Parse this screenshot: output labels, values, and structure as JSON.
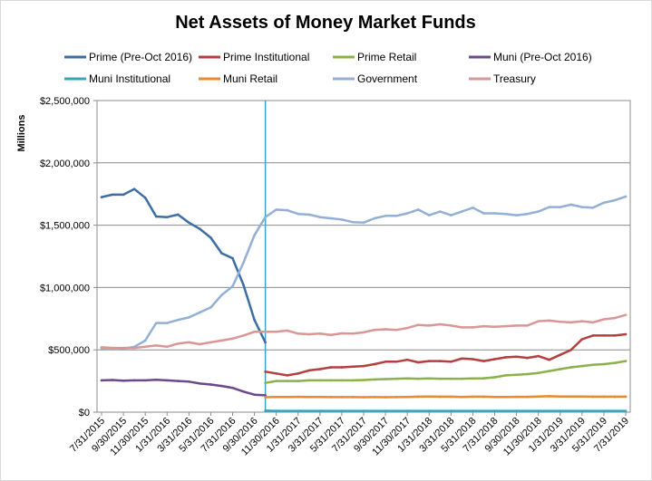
{
  "chart_data": {
    "type": "line",
    "title": "Net Assets of Money Market Funds",
    "xlabel": "",
    "ylabel": "Millions",
    "ylim": [
      0,
      2500000
    ],
    "yticks": [
      "$0",
      "$500,000",
      "$1,000,000",
      "$1,500,000",
      "$2,000,000",
      "$2,500,000"
    ],
    "grid": "horizontal",
    "legend_position": "top",
    "x": [
      "7/31/2015",
      "8/31/2015",
      "9/30/2015",
      "10/31/2015",
      "11/30/2015",
      "12/31/2015",
      "1/31/2016",
      "2/29/2016",
      "3/31/2016",
      "4/30/2016",
      "5/31/2016",
      "6/30/2016",
      "7/31/2016",
      "8/31/2016",
      "9/30/2016",
      "10/31/2016",
      "11/30/2016",
      "12/31/2016",
      "1/31/2017",
      "2/28/2017",
      "3/31/2017",
      "4/30/2017",
      "5/31/2017",
      "6/30/2017",
      "7/31/2017",
      "8/31/2017",
      "9/30/2017",
      "10/31/2017",
      "11/30/2017",
      "12/31/2017",
      "1/31/2018",
      "2/28/2018",
      "3/31/2018",
      "4/30/2018",
      "5/31/2018",
      "6/30/2018",
      "7/31/2018",
      "8/31/2018",
      "9/30/2018",
      "10/31/2018",
      "11/30/2018",
      "12/31/2018",
      "1/31/2019",
      "2/28/2019",
      "3/31/2019",
      "4/30/2019",
      "5/31/2019",
      "6/30/2019",
      "7/31/2019"
    ],
    "xtick_labels": [
      "7/31/2015",
      "9/30/2015",
      "11/30/2015",
      "1/31/2016",
      "3/31/2016",
      "5/31/2016",
      "7/31/2016",
      "9/30/2016",
      "11/30/2016",
      "1/31/2017",
      "3/31/2017",
      "5/31/2017",
      "7/31/2017",
      "9/30/2017",
      "11/30/2017",
      "1/31/2018",
      "3/31/2018",
      "5/31/2018",
      "7/31/2018",
      "9/30/2018",
      "11/30/2018",
      "1/31/2019",
      "3/31/2019",
      "5/31/2019",
      "7/31/2019"
    ],
    "divider_x": "10/31/2016",
    "series": [
      {
        "name": "Prime (Pre-Oct 2016)",
        "color": "#3c6ea5",
        "values": [
          1725000,
          1745000,
          1745000,
          1790000,
          1720000,
          1570000,
          1565000,
          1585000,
          1520000,
          1470000,
          1400000,
          1275000,
          1235000,
          1020000,
          740000,
          560000,
          null,
          null,
          null,
          null,
          null,
          null,
          null,
          null,
          null,
          null,
          null,
          null,
          null,
          null,
          null,
          null,
          null,
          null,
          null,
          null,
          null,
          null,
          null,
          null,
          null,
          null,
          null,
          null,
          null,
          null,
          null,
          null,
          null
        ]
      },
      {
        "name": "Prime Institutional",
        "color": "#b3403e",
        "values": [
          null,
          null,
          null,
          null,
          null,
          null,
          null,
          null,
          null,
          null,
          null,
          null,
          null,
          null,
          null,
          325000,
          310000,
          295000,
          310000,
          335000,
          345000,
          360000,
          360000,
          365000,
          370000,
          385000,
          405000,
          405000,
          420000,
          400000,
          410000,
          410000,
          405000,
          430000,
          425000,
          410000,
          425000,
          440000,
          445000,
          435000,
          450000,
          420000,
          460000,
          500000,
          585000,
          615000,
          615000,
          615000,
          625000
        ]
      },
      {
        "name": "Prime Retail",
        "color": "#8cb04a",
        "values": [
          null,
          null,
          null,
          null,
          null,
          null,
          null,
          null,
          null,
          null,
          null,
          null,
          null,
          null,
          null,
          235000,
          250000,
          250000,
          250000,
          255000,
          255000,
          255000,
          255000,
          255000,
          258000,
          262000,
          265000,
          268000,
          270000,
          268000,
          270000,
          268000,
          268000,
          268000,
          270000,
          272000,
          280000,
          295000,
          300000,
          305000,
          315000,
          330000,
          345000,
          360000,
          370000,
          380000,
          385000,
          395000,
          410000
        ]
      },
      {
        "name": "Muni (Pre-Oct 2016)",
        "color": "#6a4a8c",
        "values": [
          255000,
          258000,
          252000,
          255000,
          255000,
          260000,
          255000,
          250000,
          245000,
          230000,
          222000,
          210000,
          195000,
          165000,
          140000,
          135000,
          null,
          null,
          null,
          null,
          null,
          null,
          null,
          null,
          null,
          null,
          null,
          null,
          null,
          null,
          null,
          null,
          null,
          null,
          null,
          null,
          null,
          null,
          null,
          null,
          null,
          null,
          null,
          null,
          null,
          null,
          null,
          null,
          null
        ]
      },
      {
        "name": "Muni Institutional",
        "color": "#3ba3c2",
        "values": [
          null,
          null,
          null,
          null,
          null,
          null,
          null,
          null,
          null,
          null,
          null,
          null,
          null,
          null,
          null,
          12000,
          10000,
          10000,
          10000,
          10000,
          10000,
          10000,
          10000,
          10000,
          10000,
          10000,
          10000,
          10000,
          10000,
          10000,
          10000,
          10000,
          10000,
          10000,
          10000,
          10000,
          10000,
          10000,
          10000,
          10000,
          10000,
          10000,
          10000,
          10000,
          10000,
          10000,
          10000,
          10000,
          10000
        ]
      },
      {
        "name": "Muni Retail",
        "color": "#e98a30",
        "values": [
          null,
          null,
          null,
          null,
          null,
          null,
          null,
          null,
          null,
          null,
          null,
          null,
          null,
          null,
          null,
          120000,
          122000,
          122000,
          123000,
          122000,
          122000,
          121000,
          121000,
          121000,
          120000,
          121000,
          120000,
          121000,
          122000,
          124000,
          125000,
          124000,
          124000,
          122000,
          124000,
          124000,
          122000,
          122000,
          123000,
          123000,
          126000,
          128000,
          126000,
          126000,
          126000,
          124000,
          124000,
          124000,
          124000
        ]
      },
      {
        "name": "Government",
        "color": "#93afd6",
        "values": [
          510000,
          505000,
          510000,
          525000,
          575000,
          715000,
          715000,
          740000,
          760000,
          800000,
          840000,
          940000,
          1010000,
          1200000,
          1420000,
          1565000,
          1625000,
          1620000,
          1590000,
          1585000,
          1565000,
          1555000,
          1545000,
          1525000,
          1520000,
          1555000,
          1575000,
          1575000,
          1595000,
          1625000,
          1580000,
          1610000,
          1580000,
          1610000,
          1640000,
          1595000,
          1595000,
          1590000,
          1580000,
          1590000,
          1610000,
          1645000,
          1645000,
          1665000,
          1645000,
          1640000,
          1680000,
          1700000,
          1730000
        ]
      },
      {
        "name": "Treasury",
        "color": "#d99694",
        "values": [
          520000,
          515000,
          515000,
          515000,
          525000,
          535000,
          525000,
          550000,
          560000,
          545000,
          560000,
          575000,
          590000,
          615000,
          645000,
          645000,
          645000,
          655000,
          630000,
          625000,
          630000,
          620000,
          632000,
          630000,
          640000,
          660000,
          665000,
          660000,
          675000,
          700000,
          695000,
          705000,
          695000,
          680000,
          680000,
          690000,
          685000,
          690000,
          695000,
          695000,
          730000,
          735000,
          725000,
          720000,
          730000,
          720000,
          745000,
          755000,
          780000
        ]
      }
    ]
  }
}
